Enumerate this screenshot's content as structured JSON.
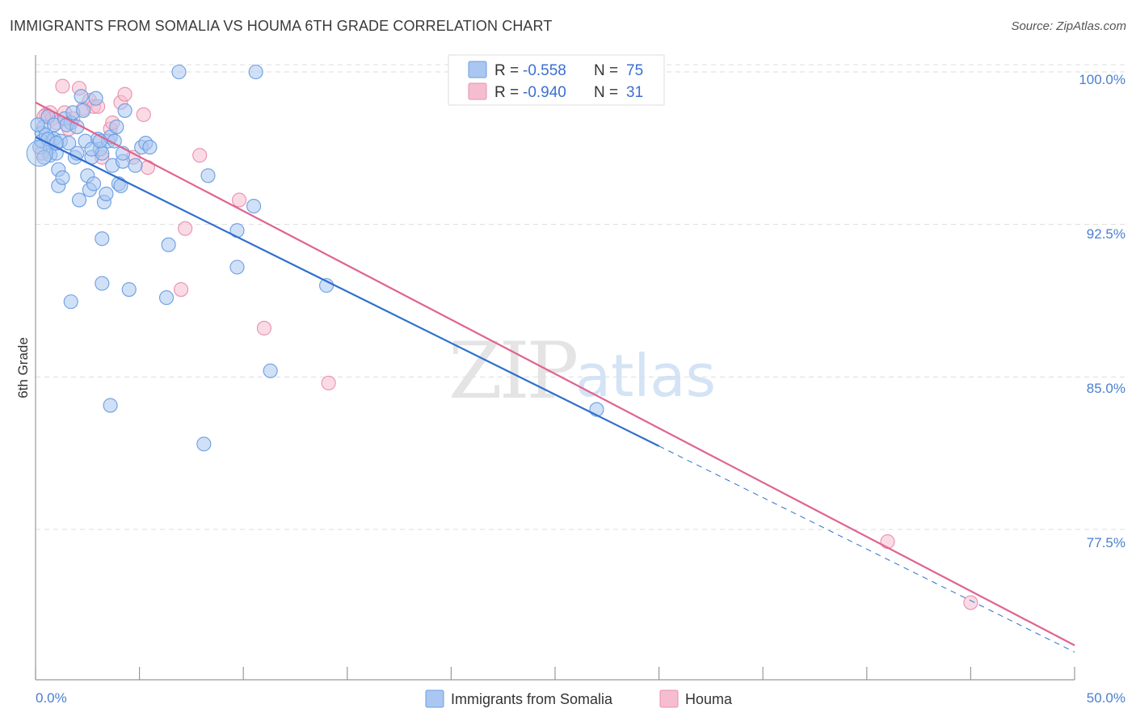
{
  "header": {
    "title": "IMMIGRANTS FROM SOMALIA VS HOUMA 6TH GRADE CORRELATION CHART",
    "source": "Source: ZipAtlas.com"
  },
  "watermark": {
    "zip": "ZIP",
    "atlas": "atlas"
  },
  "colors": {
    "blue_fill": "#a9c7f0",
    "blue_stroke": "#6b9ee3",
    "blue_line": "#2f6fce",
    "pink_fill": "#f6bdd0",
    "pink_stroke": "#ea8fae",
    "pink_line": "#e0638f",
    "tick_text": "#4a7fd0",
    "grid": "#dddddd"
  },
  "legend": {
    "rows": [
      {
        "r_label": "R =",
        "r_value": "-0.558",
        "n_label": "N =",
        "n_value": "75"
      },
      {
        "r_label": "R =",
        "r_value": "-0.940",
        "n_label": "N =",
        "n_value": "31"
      }
    ]
  },
  "chart_data": {
    "type": "scatter",
    "title": "IMMIGRANTS FROM SOMALIA VS HOUMA 6TH GRADE CORRELATION CHART",
    "xlabel": "",
    "ylabel": "6th Grade",
    "xlim": [
      0,
      50
    ],
    "ylim": [
      71.0,
      101.0
    ],
    "x_tick_labels": [
      "0.0%",
      "50.0%"
    ],
    "y_ticks": [
      77.5,
      85.0,
      92.5,
      100.0
    ],
    "y_tick_labels": [
      "77.5%",
      "85.0%",
      "92.5%",
      "100.0%"
    ],
    "legend_position": "top-center",
    "series": [
      {
        "name": "Immigrants from Somalia",
        "color": "#6b9ee3",
        "trend": {
          "x0": 0.0,
          "y0": 96.8,
          "x1": 30.0,
          "y1": 81.6,
          "dashed_to_x": 50.0
        },
        "points": [
          [
            0.2,
            96.3
          ],
          [
            0.3,
            97.0
          ],
          [
            0.3,
            96.6
          ],
          [
            0.4,
            97.3
          ],
          [
            0.5,
            96.9
          ],
          [
            0.6,
            97.8
          ],
          [
            0.7,
            96.3
          ],
          [
            0.7,
            95.9
          ],
          [
            0.8,
            96.6
          ],
          [
            0.9,
            97.4
          ],
          [
            0.9,
            96.7
          ],
          [
            1.0,
            96.0
          ],
          [
            1.1,
            95.2
          ],
          [
            1.1,
            94.4
          ],
          [
            1.2,
            96.6
          ],
          [
            1.3,
            94.8
          ],
          [
            1.4,
            97.7
          ],
          [
            1.6,
            96.5
          ],
          [
            1.7,
            97.5
          ],
          [
            1.8,
            98.0
          ],
          [
            1.9,
            95.8
          ],
          [
            2.0,
            96.0
          ],
          [
            2.1,
            93.7
          ],
          [
            2.2,
            98.8
          ],
          [
            2.3,
            98.1
          ],
          [
            2.4,
            96.6
          ],
          [
            2.5,
            94.9
          ],
          [
            2.6,
            94.2
          ],
          [
            2.7,
            95.8
          ],
          [
            2.8,
            94.5
          ],
          [
            2.9,
            98.7
          ],
          [
            3.0,
            96.7
          ],
          [
            3.1,
            96.2
          ],
          [
            3.2,
            96.0
          ],
          [
            3.3,
            93.6
          ],
          [
            3.4,
            94.0
          ],
          [
            3.5,
            96.6
          ],
          [
            3.6,
            96.8
          ],
          [
            3.7,
            95.4
          ],
          [
            3.8,
            96.6
          ],
          [
            3.9,
            97.3
          ],
          [
            4.0,
            94.5
          ],
          [
            4.1,
            94.4
          ],
          [
            4.2,
            95.6
          ],
          [
            4.3,
            98.1
          ],
          [
            4.5,
            89.3
          ],
          [
            4.8,
            95.4
          ],
          [
            5.1,
            96.3
          ],
          [
            5.3,
            96.5
          ],
          [
            6.3,
            88.9
          ],
          [
            6.4,
            91.5
          ],
          [
            6.9,
            100.0
          ],
          [
            8.1,
            81.7
          ],
          [
            8.3,
            94.9
          ],
          [
            9.7,
            90.4
          ],
          [
            9.7,
            92.2
          ],
          [
            10.5,
            93.4
          ],
          [
            10.6,
            100.0
          ],
          [
            11.3,
            85.3
          ],
          [
            14.0,
            89.5
          ],
          [
            27.0,
            83.4
          ],
          [
            3.2,
            89.6
          ],
          [
            3.6,
            83.6
          ],
          [
            1.7,
            88.7
          ],
          [
            3.2,
            91.8
          ],
          [
            0.1,
            97.4
          ],
          [
            0.6,
            96.7
          ],
          [
            1.5,
            97.4
          ],
          [
            2.7,
            96.2
          ],
          [
            4.2,
            96.0
          ],
          [
            5.5,
            96.3
          ],
          [
            0.4,
            95.8
          ],
          [
            1.0,
            96.5
          ],
          [
            2.0,
            97.3
          ],
          [
            3.1,
            96.6
          ]
        ]
      },
      {
        "name": "Houma",
        "color": "#ea8fae",
        "trend": {
          "x0": 0.0,
          "y0": 98.5,
          "x1": 50.0,
          "y1": 71.8
        },
        "points": [
          [
            0.3,
            96.0
          ],
          [
            0.5,
            97.9
          ],
          [
            0.7,
            98.0
          ],
          [
            0.8,
            97.7
          ],
          [
            1.0,
            97.5
          ],
          [
            1.3,
            99.3
          ],
          [
            1.4,
            98.0
          ],
          [
            1.6,
            97.2
          ],
          [
            1.8,
            97.7
          ],
          [
            2.1,
            99.2
          ],
          [
            2.3,
            98.2
          ],
          [
            2.6,
            98.6
          ],
          [
            2.8,
            98.3
          ],
          [
            3.0,
            98.3
          ],
          [
            3.2,
            95.8
          ],
          [
            3.6,
            97.2
          ],
          [
            3.7,
            97.5
          ],
          [
            4.1,
            98.5
          ],
          [
            4.3,
            98.9
          ],
          [
            4.7,
            95.8
          ],
          [
            5.2,
            97.9
          ],
          [
            5.4,
            95.3
          ],
          [
            7.2,
            92.3
          ],
          [
            7.9,
            95.9
          ],
          [
            9.8,
            93.7
          ],
          [
            11.0,
            87.4
          ],
          [
            14.1,
            84.7
          ],
          [
            41.0,
            76.9
          ],
          [
            45.0,
            73.9
          ],
          [
            7.0,
            89.3
          ],
          [
            0.4,
            97.8
          ]
        ]
      }
    ]
  },
  "bottom_legend": [
    {
      "label": "Immigrants from Somalia"
    },
    {
      "label": "Houma"
    }
  ]
}
